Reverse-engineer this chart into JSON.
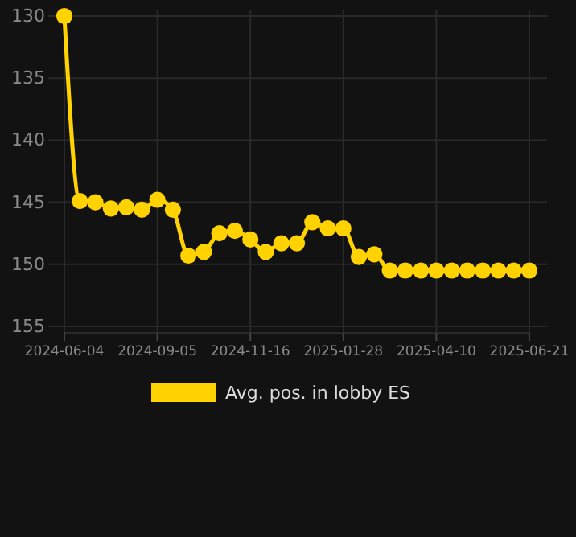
{
  "chart_data": {
    "type": "line",
    "categories": [
      "2024-06-04",
      null,
      null,
      null,
      null,
      null,
      "2024-09-05",
      null,
      null,
      null,
      null,
      null,
      "2024-11-16",
      null,
      null,
      null,
      null,
      null,
      "2025-01-28",
      null,
      null,
      null,
      null,
      null,
      "2025-04-10",
      null,
      null,
      null,
      null,
      null,
      "2025-06-21"
    ],
    "series": [
      {
        "name": "Avg. pos. in lobby ES",
        "color": "#ffd200",
        "values": [
          130,
          144.9,
          145,
          145.5,
          145.4,
          145.6,
          144.8,
          145.6,
          149.3,
          149,
          147.5,
          147.3,
          148,
          149,
          148.3,
          148.3,
          146.6,
          147.1,
          147.1,
          149.4,
          149.2,
          150.5,
          150.5,
          150.5,
          150.5,
          150.5,
          150.5,
          150.5,
          150.5,
          150.5,
          150.5
        ]
      }
    ],
    "ylim": [
      155,
      130
    ],
    "yticks": [
      130,
      135,
      140,
      145,
      150,
      155
    ],
    "grid": true,
    "legend": "bottom",
    "marker": "circle",
    "line_style": "solid"
  }
}
